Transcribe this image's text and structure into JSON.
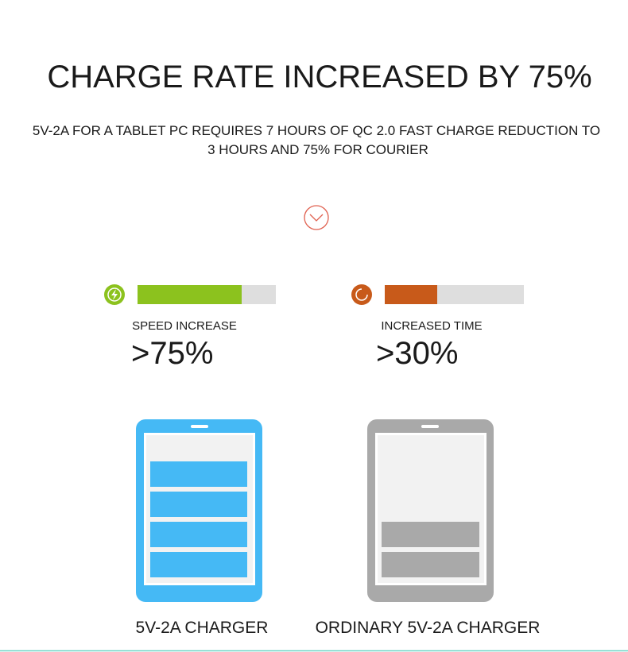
{
  "header": {
    "title": "CHARGE RATE INCREASED BY 75%",
    "subtitle_lines": [
      "5V-2A FOR A TABLET PC REQUIRES 7 HOURS OF QC 2.0 FAST CHARGE REDUCTION TO",
      "3 HOURS AND 75% FOR COURIER"
    ]
  },
  "stats": [
    {
      "label": "SPEED INCREASE",
      "value": ">75%"
    },
    {
      "label": "INCREASED TIME",
      "value": ">30%"
    }
  ],
  "devices": [
    {
      "label": "5V-2A CHARGER"
    },
    {
      "label": "ORDINARY 5V-2A CHARGER"
    }
  ]
}
